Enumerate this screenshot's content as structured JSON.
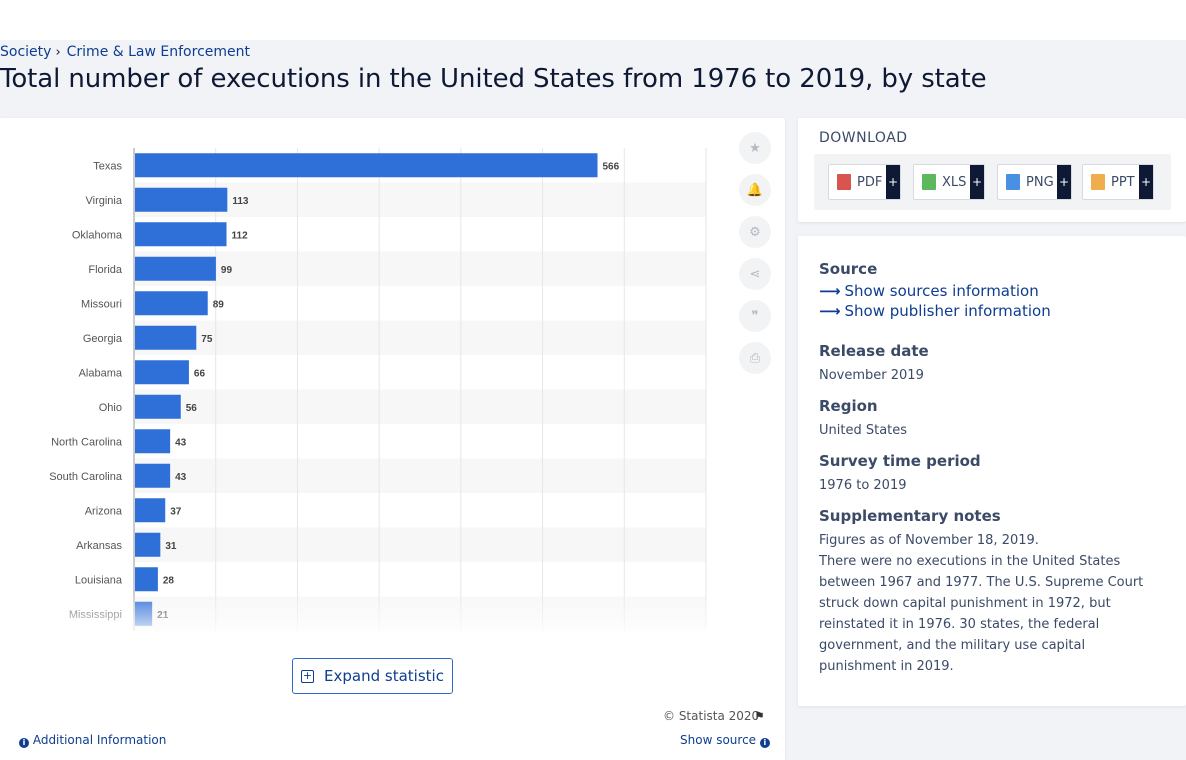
{
  "breadcrumb": {
    "items": [
      "Society",
      "Crime & Law Enforcement"
    ],
    "separator": "›"
  },
  "title": "Total number of executions in the United States from 1976 to 2019, by state",
  "chart_data": {
    "type": "bar",
    "orientation": "horizontal",
    "categories": [
      "Texas",
      "Virginia",
      "Oklahoma",
      "Florida",
      "Missouri",
      "Georgia",
      "Alabama",
      "Ohio",
      "North Carolina",
      "South Carolina",
      "Arizona",
      "Arkansas",
      "Louisiana",
      "Mississippi"
    ],
    "values": [
      566,
      113,
      112,
      99,
      89,
      75,
      66,
      56,
      43,
      43,
      37,
      31,
      28,
      21
    ],
    "title": "",
    "xlabel": "",
    "ylabel": "",
    "xlim": [
      0,
      700
    ],
    "grid": true,
    "bar_color": "#2f6fd8",
    "data_labels": true
  },
  "tools": [
    {
      "name": "favorite-icon",
      "glyph": "★"
    },
    {
      "name": "alert-bell-icon",
      "glyph": "🔔"
    },
    {
      "name": "settings-gear-icon",
      "glyph": "⚙"
    },
    {
      "name": "share-icon",
      "glyph": "⋖"
    },
    {
      "name": "cite-quote-icon",
      "glyph": "❞"
    },
    {
      "name": "print-icon",
      "glyph": "⎙"
    }
  ],
  "expand_label": "Expand statistic",
  "copyright": "© Statista 2020",
  "additional_info": "Additional Information",
  "show_source": "Show source",
  "download": {
    "title": "DOWNLOAD",
    "buttons": [
      {
        "label": "PDF",
        "color": "#d9534f"
      },
      {
        "label": "XLS",
        "color": "#5cb85c"
      },
      {
        "label": "PNG",
        "color": "#4a90e2"
      },
      {
        "label": "PPT",
        "color": "#f0ad4e"
      }
    ],
    "plus": "+"
  },
  "info": {
    "source_heading": "Source",
    "show_sources": "Show sources information",
    "show_publisher": "Show publisher information",
    "release_heading": "Release date",
    "release_value": "November 2019",
    "region_heading": "Region",
    "region_value": "United States",
    "period_heading": "Survey time period",
    "period_value": "1976 to 2019",
    "notes_heading": "Supplementary notes",
    "notes_line1": "Figures as of November 18, 2019.",
    "notes_line2": "There were no executions in the United States between 1967 and 1977. The U.S. Supreme Court struck down capital punishment in 1972, but reinstated it in 1976. 30 states, the federal government, and the military use capital punishment in 2019."
  }
}
